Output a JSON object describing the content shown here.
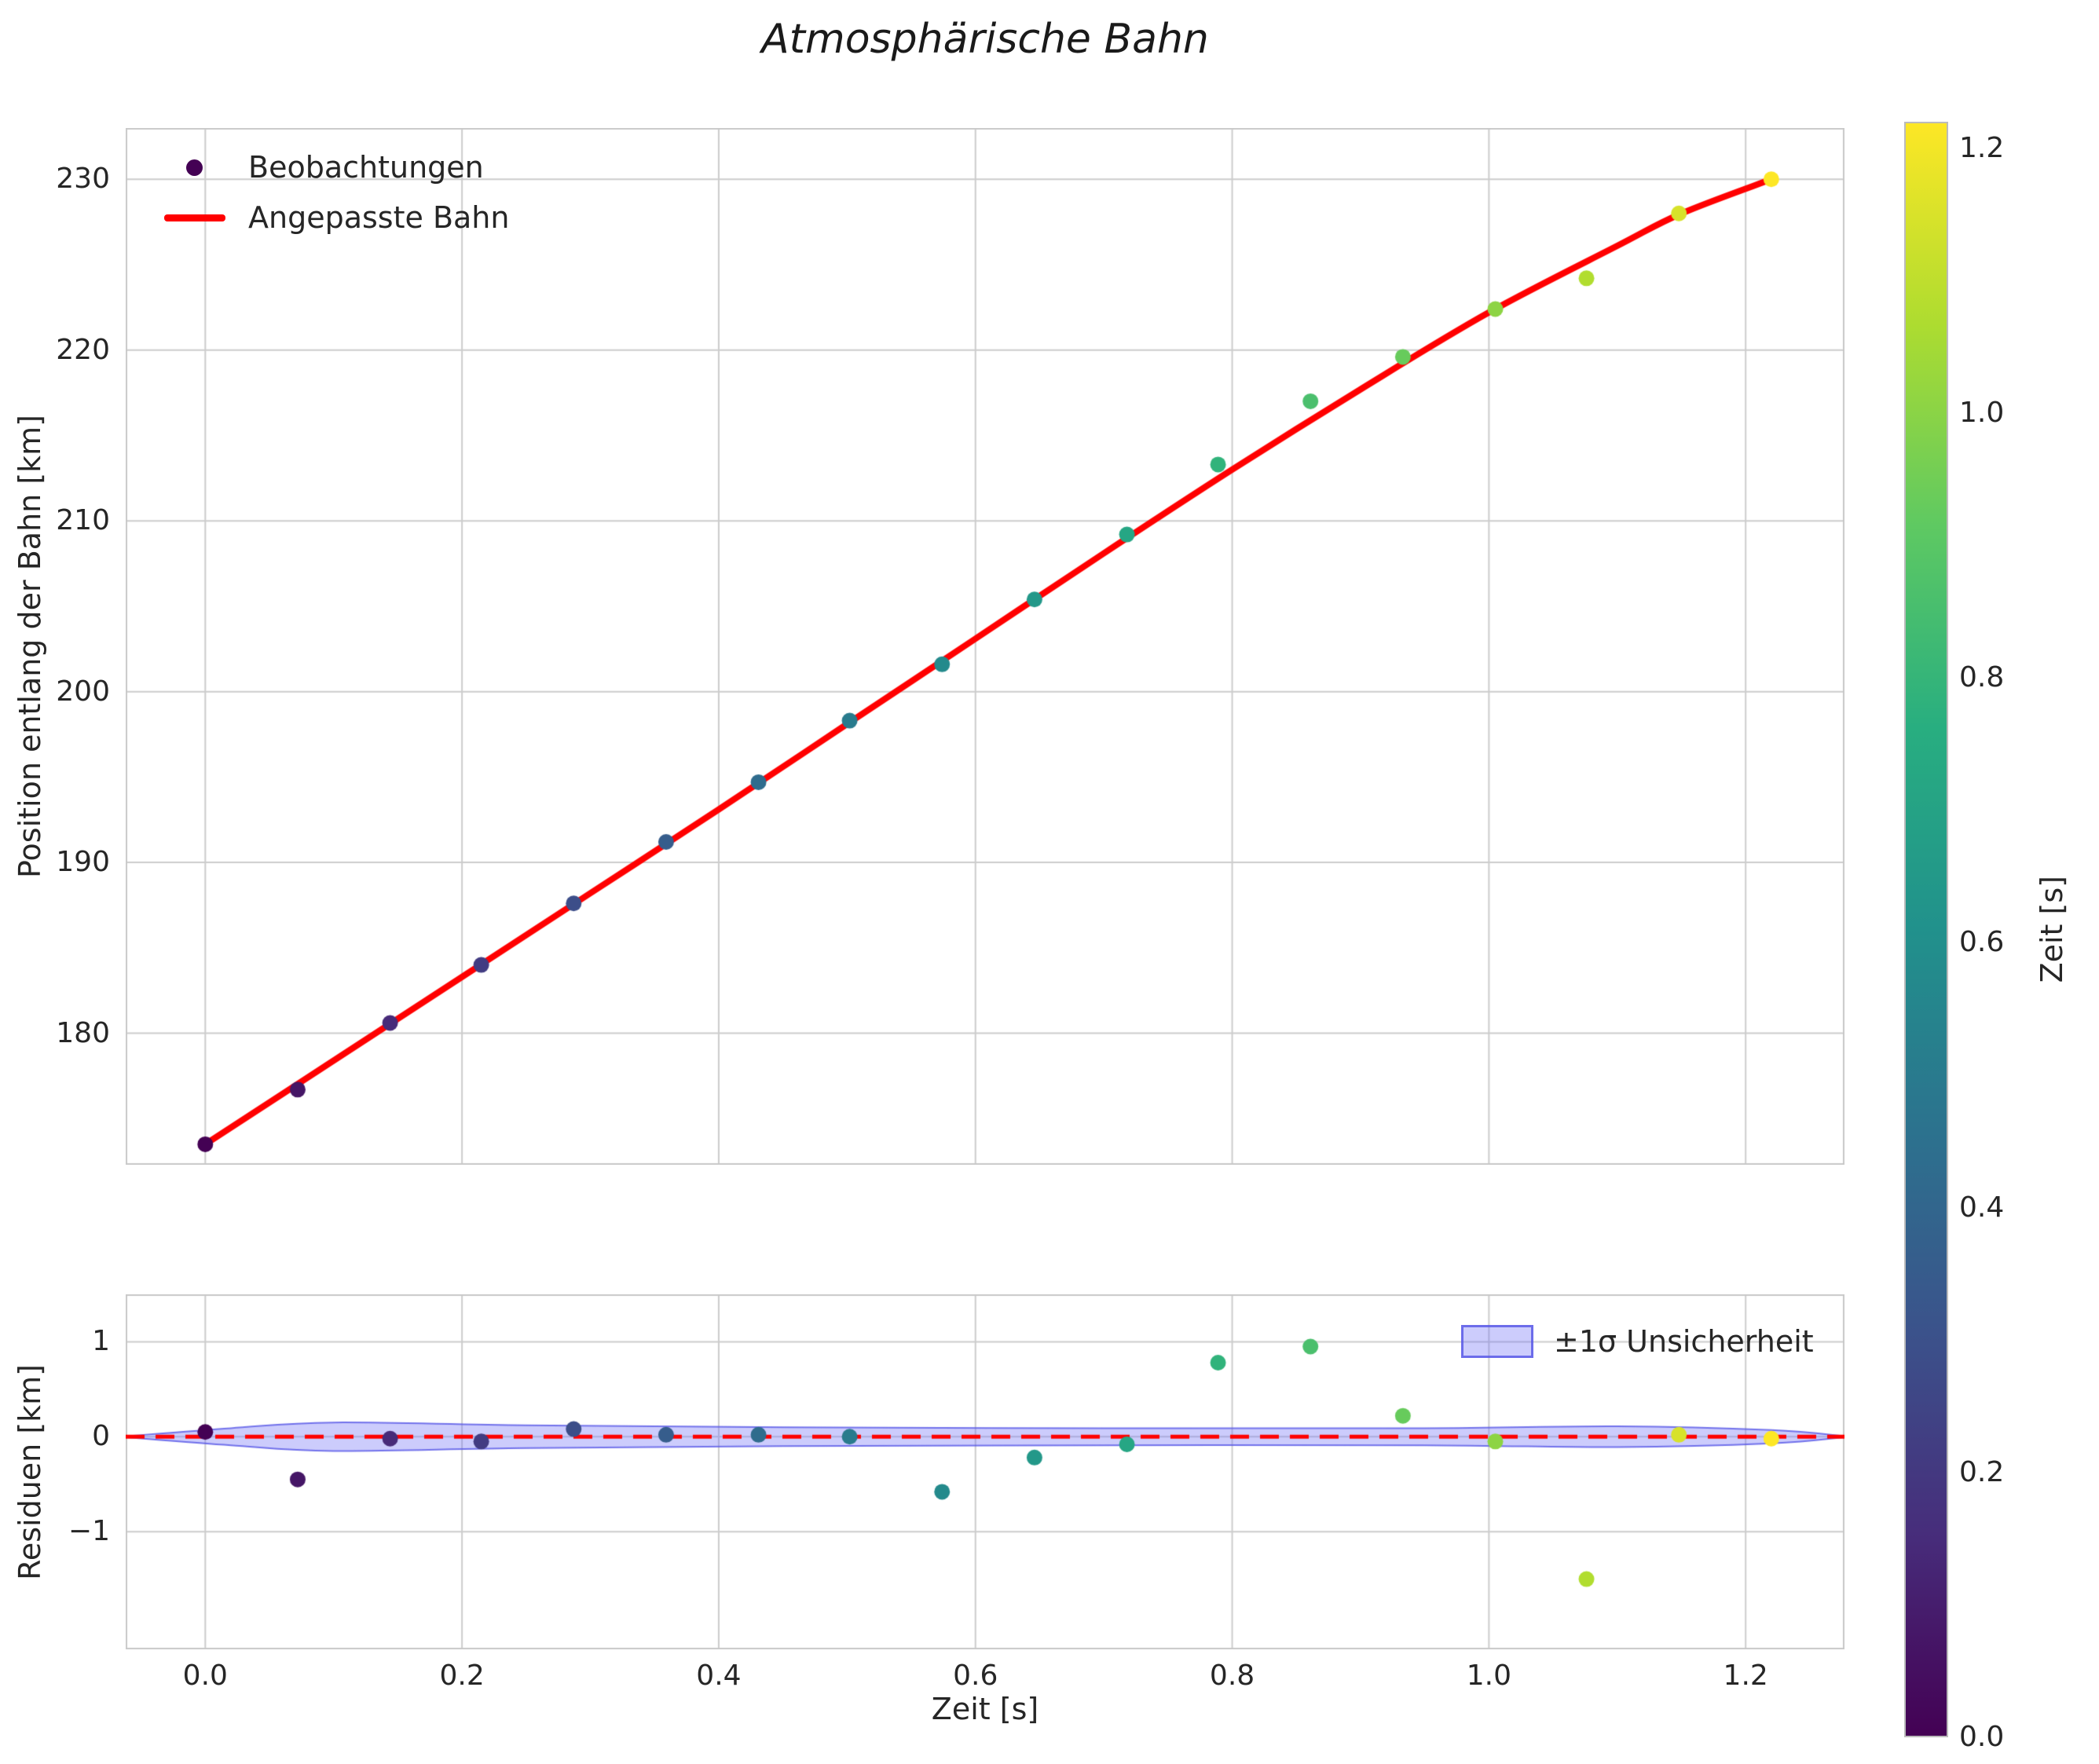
{
  "chart_data": {
    "type": "scatter",
    "title": "Atmosphärische Bahn",
    "xlabel": "Zeit [s]",
    "xlim": [
      -0.062,
      1.277
    ],
    "xticks": [
      0.0,
      0.2,
      0.4,
      0.6,
      0.8,
      1.0,
      1.2
    ],
    "main_panel": {
      "ylabel": "Position entlang der Bahn [km]",
      "ylim": [
        172.3,
        233.0
      ],
      "yticks": [
        180,
        190,
        200,
        210,
        220,
        230
      ],
      "legend": [
        {
          "label": "Beobachtungen",
          "marker": "dot",
          "color": "#440154"
        },
        {
          "label": "Angepasste Bahn",
          "marker": "line",
          "color": "#ff0000"
        }
      ],
      "observations": {
        "t": [
          0.0,
          0.072,
          0.144,
          0.215,
          0.287,
          0.359,
          0.431,
          0.502,
          0.574,
          0.646,
          0.718,
          0.789,
          0.861,
          0.933,
          1.005,
          1.076,
          1.148,
          1.22
        ],
        "position_km": [
          173.5,
          176.7,
          180.6,
          184.0,
          187.6,
          191.2,
          194.7,
          198.3,
          201.6,
          205.4,
          209.2,
          213.3,
          217.0,
          219.6,
          222.4,
          224.2,
          228.0,
          230.0
        ]
      },
      "fitted_curve": {
        "t": [
          0.0,
          0.1,
          0.2,
          0.3,
          0.4,
          0.5,
          0.6,
          0.7,
          0.8,
          0.9,
          1.0,
          1.1,
          1.15,
          1.22
        ],
        "position_km": [
          173.5,
          178.4,
          183.3,
          188.2,
          193.1,
          198.1,
          203.1,
          208.1,
          213.0,
          217.7,
          222.2,
          226.1,
          228.0,
          230.0
        ]
      }
    },
    "residual_panel": {
      "ylabel": "Residuen [km]",
      "ylim": [
        -2.24,
        1.5
      ],
      "yticks": [
        -1,
        0,
        1
      ],
      "legend_label": "±1σ Unsicherheit",
      "zero_line_color": "#ff0000",
      "residuals_km": [
        0.05,
        -0.45,
        -0.02,
        -0.05,
        0.08,
        0.02,
        0.02,
        0.0,
        -0.58,
        -0.22,
        -0.08,
        0.78,
        0.95,
        0.22,
        -0.05,
        -1.5,
        0.02,
        -0.02
      ],
      "band": {
        "t": [
          -0.062,
          0.02,
          0.1,
          0.25,
          0.45,
          0.7,
          0.95,
          1.1,
          1.22,
          1.277
        ],
        "half_width_km": [
          0.005,
          0.09,
          0.15,
          0.12,
          0.1,
          0.09,
          0.09,
          0.11,
          0.07,
          0.005
        ]
      },
      "band_fill": "rgba(108,108,246,0.35)",
      "band_edge": "rgba(85,85,230,0.8)"
    },
    "colorbar": {
      "label": "Zeit [s]",
      "vmin": 0.0,
      "vmax": 1.22,
      "ticks": [
        0.0,
        0.2,
        0.4,
        0.6,
        0.8,
        1.0,
        1.2
      ],
      "colormap": "viridis",
      "viridis_stops": [
        [
          0.0,
          "#440154"
        ],
        [
          0.125,
          "#472d7b"
        ],
        [
          0.25,
          "#3b528b"
        ],
        [
          0.375,
          "#2c728e"
        ],
        [
          0.5,
          "#21918c"
        ],
        [
          0.625,
          "#28ae80"
        ],
        [
          0.75,
          "#5ec962"
        ],
        [
          0.875,
          "#addc30"
        ],
        [
          1.0,
          "#fde725"
        ]
      ]
    },
    "style": {
      "grid_color": "#cccccc",
      "spine_color": "#c9c9c9",
      "text_color": "#262626",
      "fit_line_color": "#ff0000",
      "marker_radius_px": 10
    }
  }
}
